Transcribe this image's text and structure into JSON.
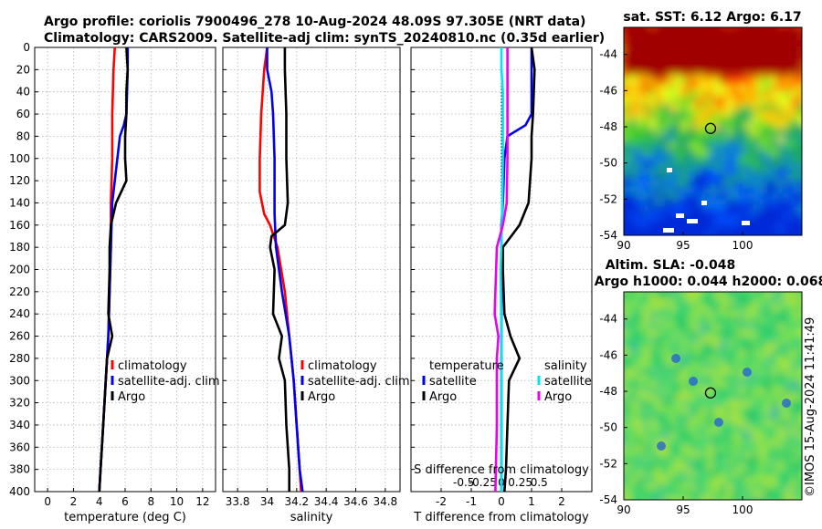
{
  "titles": {
    "line1": "Argo profile: coriolis 7900496_278 10-Aug-2024 48.09S 97.305E (NRT data)",
    "line2": "Climatology: CARS2009. Satellite-adj clim: synTS_20240810.nc (0.35d earlier)",
    "sst": "sat. SST: 6.12 Argo: 6.17",
    "sla1": "Altim. SLA: -0.048",
    "sla2": "Argo h1000: 0.044 h2000: 0.068",
    "credit": "©IMOS 15-Aug-2024 11:41:49"
  },
  "colors": {
    "climatology": "#ff0000",
    "satellite": "#0000ee",
    "argo": "#000000",
    "sal_satellite": "#00e5ee",
    "sal_diff": "#ee00ee",
    "sst_ocean_bg": "#a00000"
  },
  "chart_data": [
    {
      "type": "line",
      "name": "temperature",
      "xlabel": "temperature (deg C)",
      "ylabel": "",
      "xlim": [
        -1,
        13
      ],
      "ylim": [
        0,
        400
      ],
      "xticks": [
        0,
        2,
        4,
        6,
        8,
        10,
        12
      ],
      "yticks": [
        0,
        20,
        40,
        60,
        80,
        100,
        120,
        140,
        160,
        180,
        200,
        220,
        240,
        260,
        280,
        300,
        320,
        340,
        360,
        380,
        400
      ],
      "legend": [
        "climatology",
        "satellite-adj. clim",
        "Argo"
      ],
      "series": [
        {
          "name": "climatology",
          "color": "#ff0000",
          "depth": [
            0,
            20,
            60,
            100,
            140,
            180,
            220,
            260,
            300,
            340,
            380,
            400
          ],
          "values": [
            5.2,
            5.1,
            5.0,
            5.0,
            4.9,
            4.9,
            4.8,
            4.7,
            4.5,
            4.3,
            4.1,
            4.0
          ]
        },
        {
          "name": "satellite-adj. clim",
          "color": "#0000ee",
          "depth": [
            0,
            20,
            60,
            70,
            80,
            100,
            140,
            180,
            220,
            260,
            300,
            340,
            380,
            400
          ],
          "values": [
            6.2,
            6.2,
            6.1,
            5.9,
            5.6,
            5.4,
            5.0,
            4.9,
            4.8,
            4.7,
            4.5,
            4.3,
            4.1,
            4.0
          ]
        },
        {
          "name": "Argo",
          "color": "#000000",
          "depth": [
            0,
            20,
            40,
            60,
            80,
            100,
            120,
            140,
            160,
            180,
            200,
            240,
            260,
            280,
            300,
            340,
            380,
            400
          ],
          "values": [
            6.1,
            6.2,
            6.1,
            6.1,
            6.0,
            6.0,
            6.1,
            5.3,
            4.9,
            4.8,
            4.8,
            4.7,
            5.0,
            4.6,
            4.5,
            4.3,
            4.1,
            4.0
          ]
        }
      ]
    },
    {
      "type": "line",
      "name": "salinity",
      "xlabel": "salinity",
      "xlim": [
        33.7,
        34.9
      ],
      "ylim": [
        0,
        400
      ],
      "xticks": [
        33.8,
        34,
        34.2,
        34.4,
        34.6,
        34.8
      ],
      "legend": [
        "climatology",
        "satellite-adj. clim",
        "Argo"
      ],
      "series": [
        {
          "name": "climatology",
          "color": "#ff0000",
          "depth": [
            0,
            20,
            60,
            100,
            130,
            150,
            160,
            180,
            220,
            260,
            300,
            340,
            380,
            400
          ],
          "values": [
            34.0,
            33.98,
            33.96,
            33.95,
            33.95,
            33.98,
            34.02,
            34.07,
            34.12,
            34.15,
            34.18,
            34.2,
            34.22,
            34.23
          ]
        },
        {
          "name": "satellite-adj. clim",
          "color": "#0000ee",
          "depth": [
            0,
            20,
            40,
            60,
            100,
            150,
            180,
            220,
            260,
            300,
            340,
            380,
            400
          ],
          "values": [
            34.0,
            34.0,
            34.03,
            34.04,
            34.05,
            34.05,
            34.06,
            34.1,
            34.15,
            34.18,
            34.2,
            34.22,
            34.24
          ]
        },
        {
          "name": "Argo",
          "color": "#000000",
          "depth": [
            0,
            20,
            60,
            100,
            140,
            160,
            170,
            180,
            200,
            240,
            260,
            280,
            300,
            340,
            380,
            400
          ],
          "values": [
            34.12,
            34.12,
            34.13,
            34.13,
            34.14,
            34.12,
            34.03,
            34.02,
            34.05,
            34.04,
            34.1,
            34.08,
            34.12,
            34.13,
            34.15,
            34.15
          ]
        }
      ]
    },
    {
      "type": "line",
      "name": "difference",
      "xlabel": "T difference from climatology",
      "xlabel_top": "S difference from climatology",
      "xlim": [
        -3,
        3
      ],
      "ylim": [
        0,
        400
      ],
      "xticks": [
        -2,
        -1,
        0,
        1,
        2
      ],
      "sticks": [
        -0.5,
        -0.25,
        0,
        0.25,
        0.5
      ],
      "sticks_labels": [
        "-0.5",
        "-0.25",
        "0",
        "0.25",
        "0.5"
      ],
      "sal_scale": 2.5,
      "legend_left_title": "temperature",
      "legend_left": [
        "satellite",
        "Argo"
      ],
      "legend_right_title": "salinity",
      "legend_right": [
        "satellite",
        "Argo"
      ],
      "series": [
        {
          "name": "T satellite",
          "color": "#0000ee",
          "depth": [
            0,
            20,
            60,
            70,
            80,
            100,
            140,
            160,
            200,
            260,
            300,
            400
          ],
          "values": [
            1.0,
            1.0,
            1.0,
            0.8,
            0.2,
            0.1,
            0.05,
            0.0,
            0.0,
            0.0,
            0.0,
            0.0
          ]
        },
        {
          "name": "T Argo",
          "color": "#000000",
          "depth": [
            0,
            20,
            60,
            80,
            100,
            140,
            160,
            180,
            200,
            240,
            260,
            280,
            300,
            340,
            380,
            400
          ],
          "values": [
            1.0,
            1.1,
            1.05,
            1.0,
            1.0,
            0.9,
            0.6,
            0.05,
            0.05,
            0.1,
            0.3,
            0.6,
            0.25,
            0.2,
            0.15,
            0.1
          ]
        },
        {
          "name": "S satellite",
          "color": "#00e5ee",
          "depth": [
            0,
            20,
            40,
            100,
            150,
            200,
            260,
            300,
            400
          ],
          "values": [
            0.0,
            0.0,
            0.02,
            0.02,
            0.01,
            -0.01,
            0.0,
            0.0,
            0.0
          ]
        },
        {
          "name": "S Argo",
          "color": "#ee00ee",
          "depth": [
            0,
            20,
            100,
            140,
            160,
            180,
            200,
            240,
            260,
            280,
            300,
            340,
            400
          ],
          "values": [
            0.08,
            0.08,
            0.08,
            0.07,
            0.02,
            -0.06,
            -0.07,
            -0.09,
            -0.04,
            -0.06,
            -0.06,
            -0.06,
            -0.08
          ]
        }
      ]
    },
    {
      "type": "heatmap",
      "name": "sst-map",
      "title": "sat. SST: 6.12 Argo: 6.17",
      "xlim": [
        90,
        105
      ],
      "ylim": [
        -54,
        -42.5
      ],
      "xticks": [
        90,
        95,
        100
      ],
      "yticks": [
        -44,
        -46,
        -48,
        -50,
        -52,
        -54
      ],
      "marker": {
        "lon": 97.305,
        "lat": -48.09
      }
    },
    {
      "type": "heatmap",
      "name": "sla-map",
      "title": "Altim. SLA: -0.048",
      "xlim": [
        90,
        105
      ],
      "ylim": [
        -54,
        -42.5
      ],
      "xticks": [
        90,
        95,
        100
      ],
      "yticks": [
        -44,
        -46,
        -48,
        -50,
        -52,
        -54
      ],
      "marker": {
        "lon": 97.305,
        "lat": -48.09
      }
    }
  ]
}
